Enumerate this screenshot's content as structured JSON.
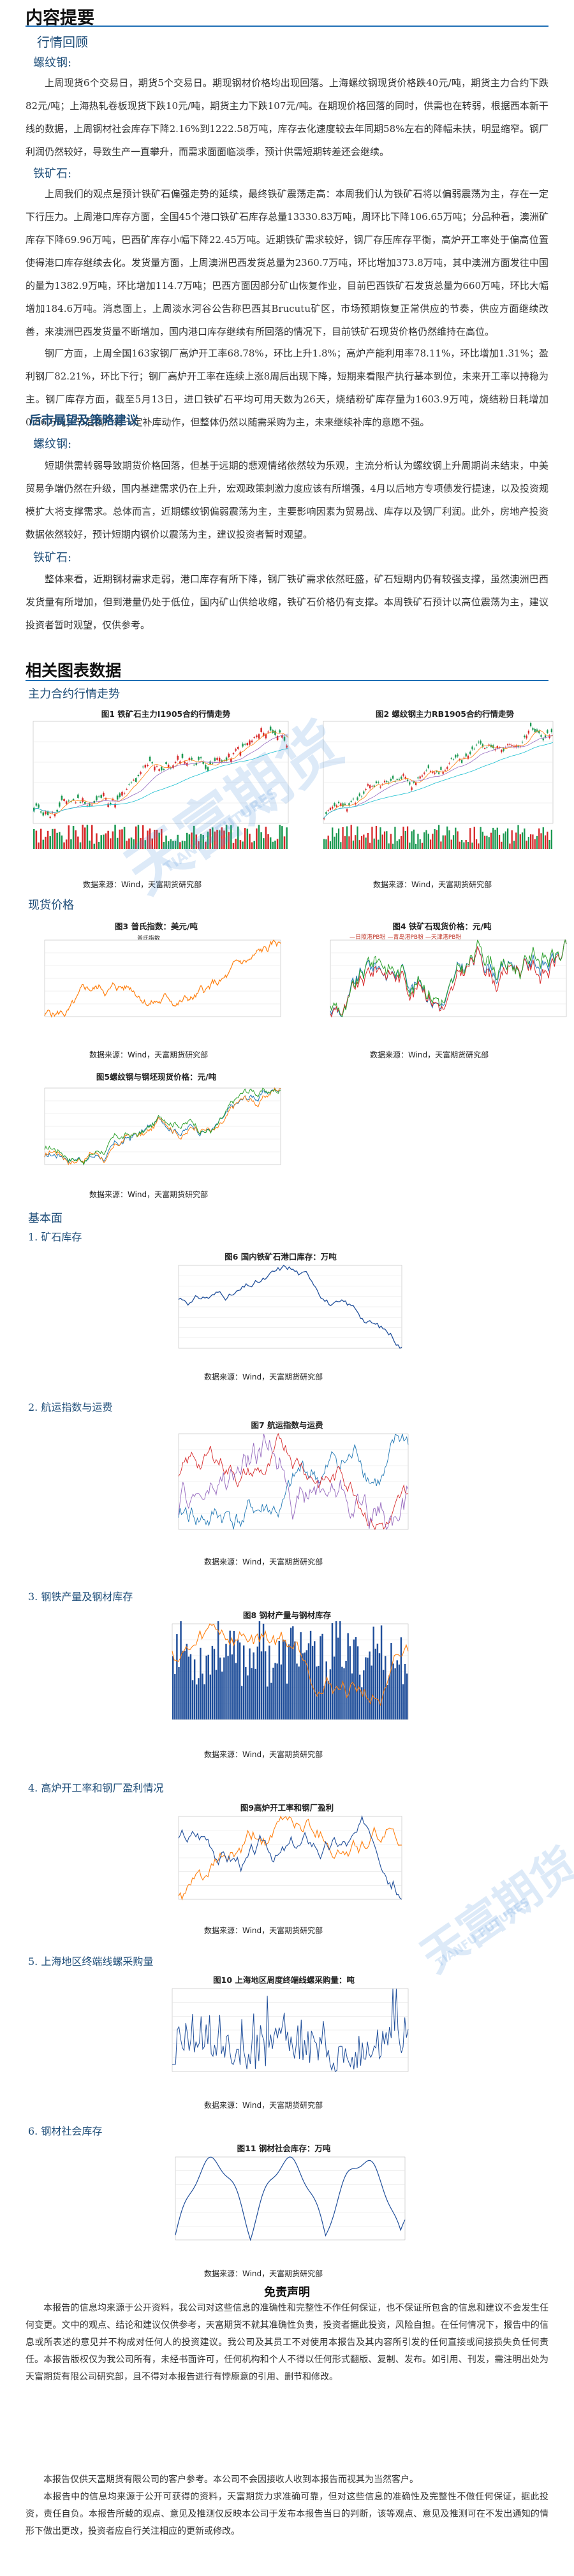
{
  "title": "内容提要",
  "sections": {
    "review": "行情回顾",
    "outlook": "后市展望及策略建议",
    "charts": "相关图表数据",
    "main_contract": "主力合约行情走势",
    "spot": "现货价格",
    "fundamentals": "基本面"
  },
  "labels": {
    "rebar": "螺纹钢:",
    "iron_ore": "铁矿石:"
  },
  "review": {
    "rebar": "上周现货6个交易日，期货5个交易日。期现钢材价格均出现回落。上海螺纹钢现货价格跌40元/吨，期货主力合约下跌82元/吨；上海热轧卷板现货下跌10元/吨，期货主力下跌107元/吨。在期现价格回落的同时，供需也在转弱，根据西本新干线的数据，上周钢材社会库存下降2.16%到1222.58万吨，库存去化速度较去年同期58%左右的降幅未扶，明显缩窄。钢厂利润仍然较好，导致生产一直攀升，而需求面面临淡季，预计供需短期转差还会继续。",
    "iron_ore_1": "上周我们的观点是预计铁矿石偏强走势的延续，最终铁矿震荡走高：本周我们认为铁矿石将以偏弱震荡为主，存在一定下行压力。上周港口库存方面，全国45个港口铁矿石库存总量13330.83万吨，周环比下降106.65万吨；分品种看，澳洲矿库存下降69.96万吨，巴西矿库存小幅下降22.45万吨。近期铁矿需求较好，钢厂存压库存平衡，高炉开工率处于偏高位置使得港口库存继续去化。发货量方面，上周澳洲巴西发货总量为2360.7万吨，环比增加373.8万吨，其中澳洲方面发往中国的量为1382.9万吨，环比增加114.7万吨；巴西方面因部分矿山恢复作业，目前巴西铁矿石发货总量为660万吨，环比大幅增加184.6万吨。消息面上，上周淡水河谷公告称巴西其Brucutu矿区，市场预期恢复正常供应的节奏，供应方面继续改善，来澳洲巴西发货量不断增加，国内港口库存继续有所回落的情况下，目前铁矿石现货价格仍然维持在高位。",
    "iron_ore_2": "钢厂方面，上周全国163家钢厂高炉开工率68.78%，环比上升1.8%；高炉产能利用率78.11%，环比增加1.31%；盈利钢厂82.21%，环比下行；钢厂高炉开工率在连续上涨8周后出现下降，短期来看限产执行基本到位，未来开工率以持稳为主。钢厂库存方面，截至5月13日，进口铁矿石平均可用天数为26天，烧结粉矿库存量为1603.9万吨，烧结粉日耗增加0.86万吨；节后钢厂有一定补库动作，但整体仍然以随需采购为主，未来继续补库的意愿不强。"
  },
  "outlook": {
    "rebar": "短期供需转弱导致期货价格回落，但基于远期的悲观情绪依然较为乐观，主流分析认为螺纹钢上升周期尚未结束，中美贸易争端仍然在升级，国内基建需求仍在上升，宏观政策刺激力度应该有所增强，4月以后地方专项债发行提速，以及投资规模扩大将支撑需求。总体而言，近期螺纹钢偏弱震荡为主，主要影响因素为贸易战、库存以及钢厂利润。此外，房地产投资数据依然较好，预计短期内钢价以震荡为主，建议投资者暂时观望。",
    "iron_ore": "整体来看，近期钢材需求走弱，港口库存有所下降，钢厂铁矿需求依然旺盛，矿石短期内仍有较强支撑，虽然澳洲巴西发货量有所增加，但到港量仍处于低位，国内矿山供给收缩，铁矿石价格仍有支撑。本周铁矿石预计以高位震荡为主，建议投资者暂时观望，仅供参考。"
  },
  "watermark": {
    "cn": "天富期货",
    "en": "TIANFU FUTURES"
  },
  "charts": {
    "c1": {
      "title": "图1 铁矿石主力I1905合约行情走势",
      "source": "数据来源：Wind，天富期货研究部"
    },
    "c2": {
      "title": "图2 螺纹钢主力RB1905合约行情走势",
      "source": "数据来源：Wind，天富期货研究部"
    },
    "c3": {
      "title": "图3 普氏指数：美元/吨",
      "source": "数据来源：Wind，天富期货研究部",
      "legend": "普氏指数"
    },
    "c4": {
      "title": "图4 铁矿石现货价格：元/吨",
      "source": "数据来源：Wind，天富期货研究部",
      "legend": "—日照港PB粉   —青岛港PB粉   —天津港PB粉"
    },
    "c5": {
      "title": "图5螺纹钢与钢坯现货价格：元/吨",
      "source": "数据来源：Wind，天富期货研究部"
    },
    "c6": {
      "title": "图6 国内铁矿石港口库存：万吨",
      "source": "数据来源：Wind，天富期货研究部",
      "sub": "1. 矿石库存"
    },
    "c7": {
      "title": "图7 航运指数与运费",
      "source": "数据来源：Wind，天富期货研究部",
      "sub": "2. 航运指数与运费"
    },
    "c8": {
      "title": "图8 钢材产量与钢材库存",
      "source": "数据来源：Wind，天富期货研究部",
      "sub": "3. 钢铁产量及钢材库存"
    },
    "c9": {
      "title": "图9高炉开工率和钢厂盈利",
      "source": "数据来源：Wind，天富期货研究部",
      "sub": "4. 高炉开工率和钢厂盈利情况"
    },
    "c10": {
      "title": "图10 上海地区周度终端线螺采购量：吨",
      "source": "数据来源：Wind，天富期货研究部",
      "sub": "5. 上海地区终端线螺采购量"
    },
    "c11": {
      "title": "图11 钢材社会库存：万吨",
      "source": "数据来源：Wind，天富期货研究部",
      "sub": "6. 钢材社会库存"
    }
  },
  "disclaimer": {
    "title": "免责声明",
    "p1": "本报告的信息均来源于公开资料，我公司对这些信息的准确性和完整性不作任何保证，也不保证所包含的信息和建议不会发生任何变更。文中的观点、结论和建议仅供参考，天富期货不就其准确性负责，投资者据此投资，风险自担。在任何情况下，报告中的信息或所表述的意见并不构成对任何人的投资建议。我公司及其员工不对使用本报告及其内容所引发的任何直接或间接损失负任何责任。本报告版权仅为我公司所有，未经书面许可，任何机构和个人不得以任何形式翻版、复制、发布。如引用、刊发，需注明出处为天富期货有限公司研究部，且不得对本报告进行有悖原意的引用、删节和修改。",
    "p2": "本报告仅供天富期货有限公司的客户参考。本公司不会因接收人收到本报告而视其为当然客户。",
    "p3": "本报告中的信息均来源于公开可获得的资料，天富期货力求准确可靠，但对这些信息的准确性及完整性不做任何保证，据此投资，责任自负。本报告所载的观点、意见及推测仅反映本公司于发布本报告当日的判断，该等观点、意见及推测可在不发出通知的情形下做出更改，投资者应自行关注相应的更新或修改。"
  },
  "chart_data": [
    {
      "id": "c1",
      "type": "line",
      "title": "图1 铁矿石主力I1905合约行情走势"
    },
    {
      "id": "c2",
      "type": "line",
      "title": "图2 螺纹钢主力RB1905合约行情走势"
    },
    {
      "id": "c3",
      "type": "line",
      "title": "图3 普氏指数：美元/吨",
      "series": [
        {
          "name": "普氏指数"
        }
      ]
    },
    {
      "id": "c4",
      "type": "line",
      "title": "图4 铁矿石现货价格：元/吨"
    },
    {
      "id": "c5",
      "type": "line",
      "title": "图5螺纹钢与钢坯现货价格：元/吨"
    },
    {
      "id": "c6",
      "type": "line",
      "title": "图6 国内铁矿石港口库存：万吨"
    },
    {
      "id": "c7",
      "type": "line",
      "title": "图7 航运指数与运费"
    },
    {
      "id": "c8",
      "type": "bar",
      "title": "图8 钢材产量与钢材库存"
    },
    {
      "id": "c9",
      "type": "line",
      "title": "图9高炉开工率和钢厂盈利"
    },
    {
      "id": "c10",
      "type": "line",
      "title": "图10 上海地区周度终端线螺采购量：吨"
    },
    {
      "id": "c11",
      "type": "line",
      "title": "图11 钢材社会库存：万吨"
    }
  ]
}
